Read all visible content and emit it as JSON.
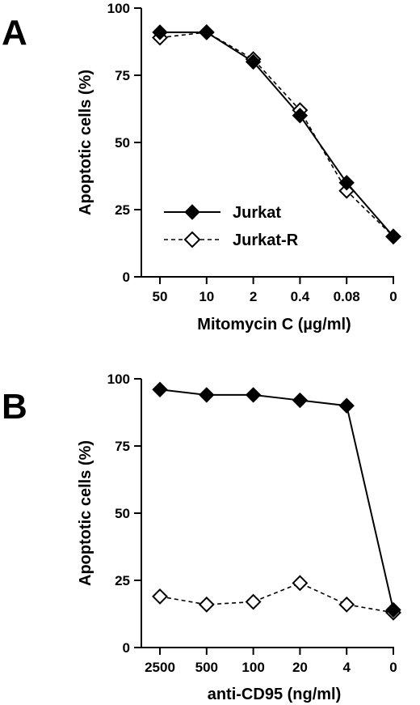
{
  "chart_data": [
    {
      "type": "line",
      "panel": "A",
      "xlabel": "Mitomycin C (µg/ml)",
      "ylabel": "Apoptotic cells (%)",
      "categories": [
        "50",
        "10",
        "2",
        "0.4",
        "0.08",
        "0"
      ],
      "ylim": [
        0,
        100
      ],
      "yticks": [
        "0",
        "25",
        "50",
        "75",
        "100"
      ],
      "legend_position": "lower-left",
      "series": [
        {
          "name": "Jurkat",
          "marker": "filled-diamond",
          "line": "solid",
          "color": "#000000",
          "values": [
            91,
            91,
            80,
            60,
            35,
            15
          ]
        },
        {
          "name": "Jurkat-R",
          "marker": "open-diamond",
          "line": "dashed",
          "color": "#000000",
          "values": [
            89,
            91,
            81,
            62,
            32,
            15
          ]
        }
      ]
    },
    {
      "type": "line",
      "panel": "B",
      "xlabel": "anti-CD95 (ng/ml)",
      "ylabel": "Apoptotic cells (%)",
      "categories": [
        "2500",
        "500",
        "100",
        "20",
        "4",
        "0"
      ],
      "ylim": [
        0,
        100
      ],
      "yticks": [
        "0",
        "25",
        "50",
        "75",
        "100"
      ],
      "series": [
        {
          "name": "Jurkat",
          "marker": "filled-diamond",
          "line": "solid",
          "color": "#000000",
          "values": [
            96,
            94,
            94,
            92,
            90,
            14
          ]
        },
        {
          "name": "Jurkat-R",
          "marker": "open-diamond",
          "line": "dashed",
          "color": "#000000",
          "values": [
            19,
            16,
            17,
            24,
            16,
            13
          ]
        }
      ]
    }
  ]
}
